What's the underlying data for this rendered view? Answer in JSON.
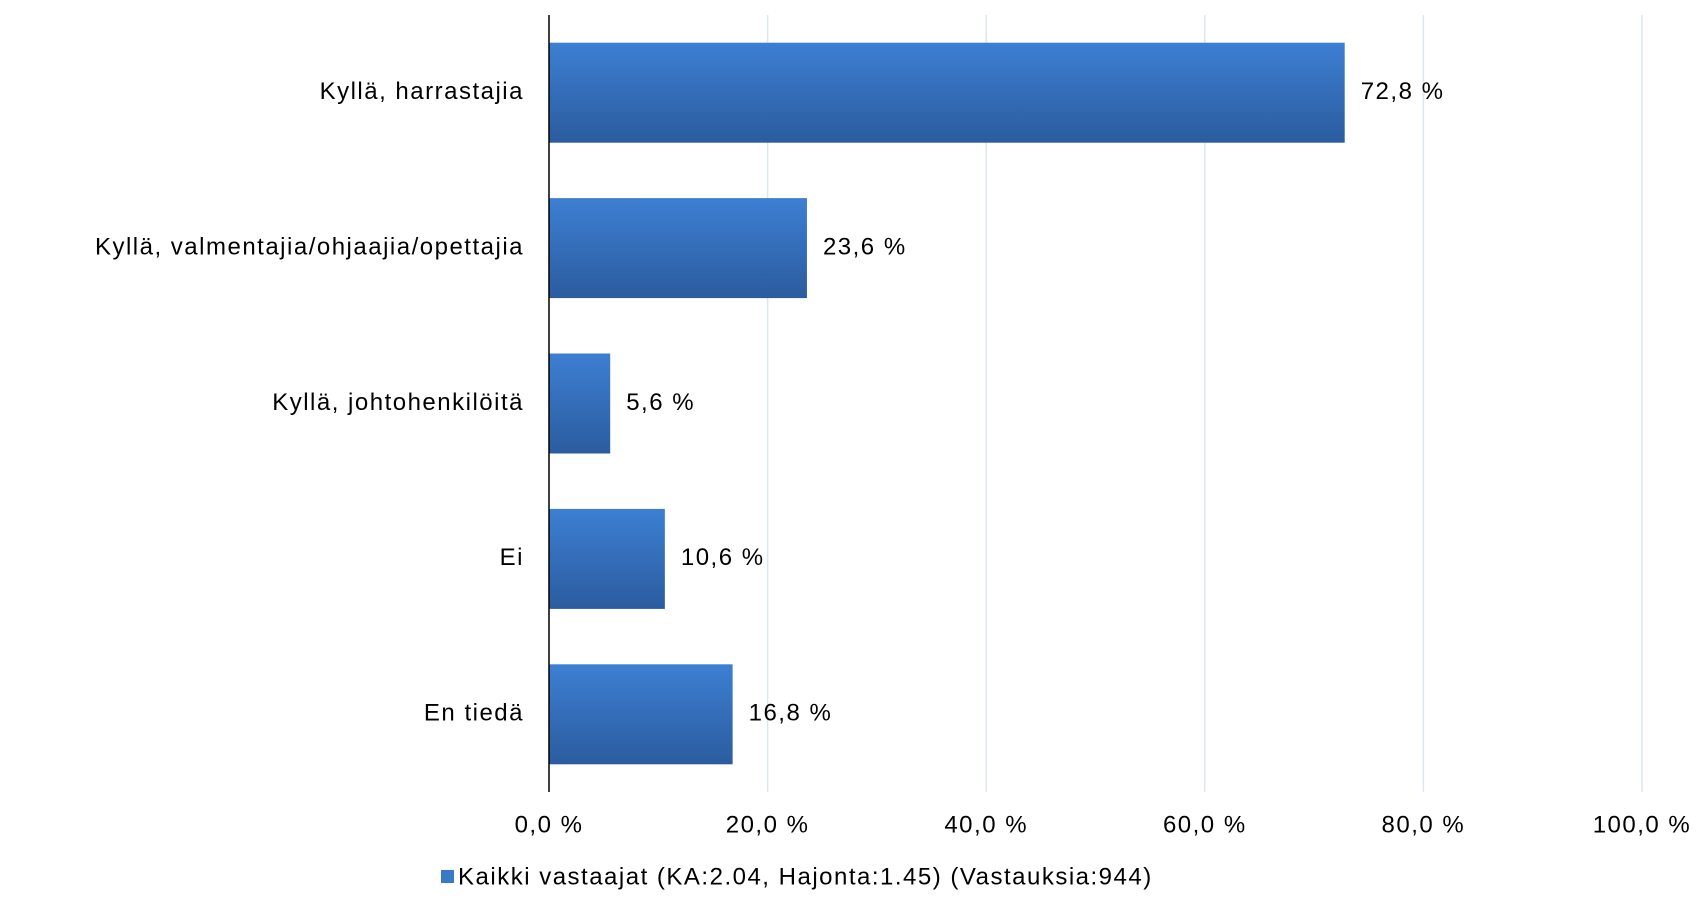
{
  "chart_data": {
    "type": "bar",
    "orientation": "horizontal",
    "categories": [
      "Kyllä, harrastajia",
      "Kyllä, valmentajia/ohjaajia/opettajia",
      "Kyllä, johtohenkilöitä",
      "Ei",
      "En tiedä"
    ],
    "series": [
      {
        "name": "Kaikki vastaajat (KA:2.04, Hajonta:1.45) (Vastauksia:944)",
        "color": "#3a78c8",
        "values": [
          72.8,
          23.6,
          5.6,
          10.6,
          16.8
        ],
        "value_labels": [
          "72,8 %",
          "23,6 %",
          "5,6 %",
          "10,6 %",
          "16,8 %"
        ]
      }
    ],
    "xlim": [
      0,
      100
    ],
    "xticks": [
      {
        "value": 0,
        "label": "0,0 %"
      },
      {
        "value": 20,
        "label": "20,0 %"
      },
      {
        "value": 40,
        "label": "40,0 %"
      },
      {
        "value": 60,
        "label": "60,0 %"
      },
      {
        "value": 80,
        "label": "80,0 %"
      },
      {
        "value": 100,
        "label": "100,0 %"
      }
    ],
    "grid": true,
    "legend": "bottom"
  }
}
